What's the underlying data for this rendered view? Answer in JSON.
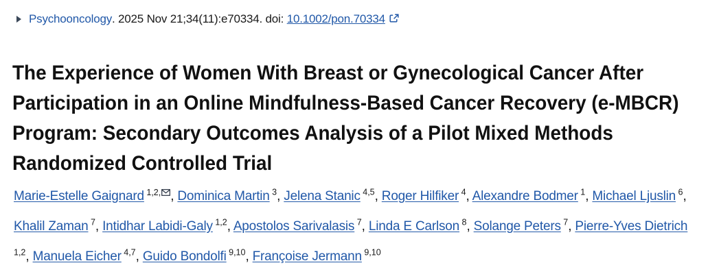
{
  "colors": {
    "background": "#ffffff",
    "link_blue": "#2158a8",
    "text_dark": "#1a1a1a",
    "title_black": "#111111",
    "triangle_dark": "#3b4859"
  },
  "citation": {
    "journal": "Psychooncology",
    "details": ". 2025 Nov 21;34(11):e70334. doi:",
    "doi": "10.1002/pon.70334"
  },
  "icons": {
    "disclosure_triangle": "right-pointing-triangle",
    "external_link": "square-with-arrow-to-top-right",
    "corresponding_author": "envelope-outline"
  },
  "title": "The Experience of Women With Breast or Gynecological Cancer After Participation in an Online Mindfulness-Based Cancer Recovery (e-MBCR) Program: Secondary Outcomes Analysis of a Pilot Mixed Methods Randomized Controlled Trial",
  "authors": [
    {
      "name": "Marie-Estelle Gaignard",
      "affiliations": "1,2",
      "corresponding": true
    },
    {
      "name": "Dominica Martin",
      "affiliations": "3",
      "corresponding": false
    },
    {
      "name": "Jelena Stanic",
      "affiliations": "4,5",
      "corresponding": false
    },
    {
      "name": "Roger Hilfiker",
      "affiliations": "4",
      "corresponding": false
    },
    {
      "name": "Alexandre Bodmer",
      "affiliations": "1",
      "corresponding": false
    },
    {
      "name": "Michael Ljuslin",
      "affiliations": "6",
      "corresponding": false
    },
    {
      "name": "Khalil Zaman",
      "affiliations": "7",
      "corresponding": false
    },
    {
      "name": "Intidhar Labidi-Galy",
      "affiliations": "1,2",
      "corresponding": false
    },
    {
      "name": "Apostolos Sarivalasis",
      "affiliations": "7",
      "corresponding": false
    },
    {
      "name": "Linda E Carlson",
      "affiliations": "8",
      "corresponding": false
    },
    {
      "name": "Solange Peters",
      "affiliations": "7",
      "corresponding": false
    },
    {
      "name": "Pierre-Yves Dietrich",
      "affiliations": "1,2",
      "corresponding": false
    },
    {
      "name": "Manuela Eicher",
      "affiliations": "4,7",
      "corresponding": false
    },
    {
      "name": "Guido Bondolfi",
      "affiliations": "9,10",
      "corresponding": false
    },
    {
      "name": "Françoise Jermann",
      "affiliations": "9,10",
      "corresponding": false
    }
  ]
}
